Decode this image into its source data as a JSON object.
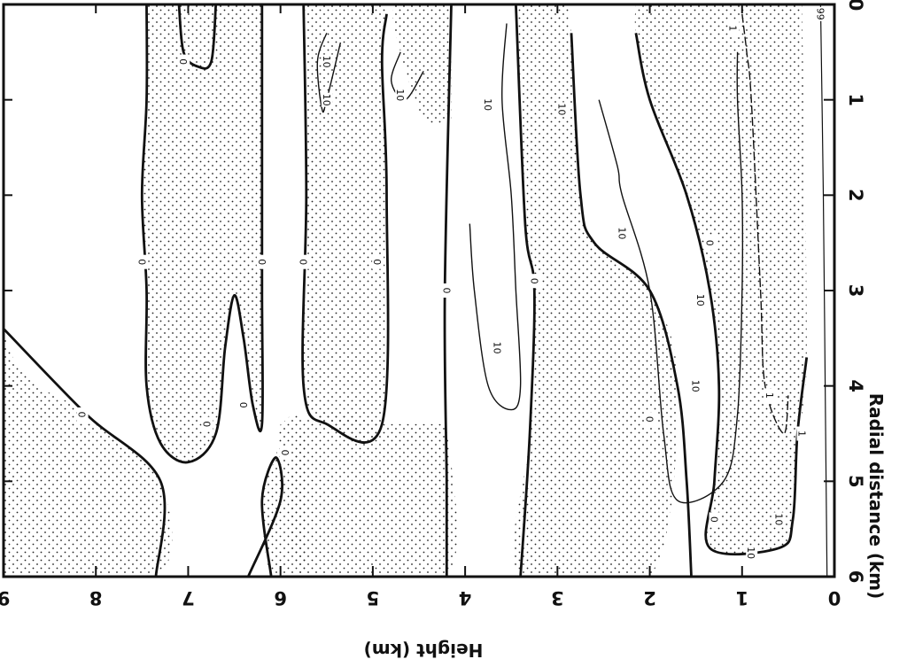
{
  "chart_data": {
    "type": "contour",
    "orientation": "rotated 90 degrees clockwise",
    "xlabel": "Radial distance (km)",
    "ylabel": "Height (km)",
    "xlim": [
      0,
      6
    ],
    "ylim": [
      0,
      9
    ],
    "x_ticks": [
      "0",
      "1",
      "2",
      "3",
      "4",
      "5",
      "6"
    ],
    "y_ticks": [
      "0",
      "1",
      "2",
      "3",
      "4",
      "5",
      "6",
      "7",
      "8",
      "9"
    ],
    "shading": "stippled regions",
    "contours": [
      {
        "level": "0",
        "style": "heavy",
        "points": [
          [
            0,
            7.45
          ],
          [
            1,
            7.45
          ],
          [
            2,
            7.5
          ],
          [
            3,
            7.45
          ],
          [
            4,
            7.45
          ],
          [
            4.6,
            7.3
          ],
          [
            4.8,
            7.0
          ],
          [
            4.5,
            6.7
          ],
          [
            3.6,
            6.6
          ],
          [
            3.05,
            6.5
          ],
          [
            3.5,
            6.4
          ],
          [
            4.2,
            6.3
          ],
          [
            4.4,
            6.2
          ],
          [
            3,
            6.2
          ],
          [
            1,
            6.2
          ],
          [
            0,
            6.2
          ]
        ]
      },
      {
        "level": "0",
        "style": "heavy",
        "points": [
          [
            0,
            6.7
          ],
          [
            0.6,
            6.75
          ],
          [
            0.65,
            6.9
          ],
          [
            0.5,
            7.05
          ],
          [
            0,
            7.1
          ]
        ]
      },
      {
        "level": "0",
        "style": "heavy",
        "points": [
          [
            3.4,
            9.0
          ],
          [
            4.3,
            8.1
          ],
          [
            5.0,
            7.3
          ],
          [
            6.0,
            7.35
          ]
        ]
      },
      {
        "level": "0",
        "style": "heavy",
        "points": [
          [
            6.0,
            6.35
          ],
          [
            5.2,
            6.0
          ],
          [
            4.75,
            6.05
          ],
          [
            5.2,
            6.2
          ],
          [
            6.0,
            6.1
          ]
        ]
      },
      {
        "level": "0",
        "style": "heavy",
        "points": [
          [
            0,
            5.75
          ],
          [
            2,
            5.72
          ],
          [
            4,
            5.75
          ],
          [
            4.4,
            5.5
          ],
          [
            4.4,
            4.9
          ],
          [
            2,
            4.85
          ],
          [
            0.6,
            4.9
          ],
          [
            0.1,
            4.85
          ]
        ]
      },
      {
        "level": "0",
        "style": "heavy",
        "points": [
          [
            0,
            4.15
          ],
          [
            3,
            4.22
          ],
          [
            5,
            4.2
          ],
          [
            6,
            4.2
          ]
        ]
      },
      {
        "level": "0",
        "style": "heavy",
        "points": [
          [
            0,
            3.45
          ],
          [
            2.3,
            3.35
          ],
          [
            3,
            3.25
          ],
          [
            4.5,
            3.3
          ],
          [
            6,
            3.4
          ]
        ]
      },
      {
        "level": "0",
        "style": "heavy",
        "points": [
          [
            0.3,
            2.85
          ],
          [
            2,
            2.75
          ],
          [
            2.5,
            2.6
          ],
          [
            3,
            2.0
          ],
          [
            4,
            1.7
          ],
          [
            5,
            1.6
          ],
          [
            6,
            1.55
          ]
        ]
      },
      {
        "level": "0",
        "style": "heavy",
        "points": [
          [
            0.3,
            2.15
          ],
          [
            1,
            2.0
          ],
          [
            2,
            1.6
          ],
          [
            3,
            1.35
          ],
          [
            4,
            1.25
          ],
          [
            5,
            1.3
          ],
          [
            5.7,
            1.35
          ],
          [
            5.7,
            0.6
          ],
          [
            5.4,
            0.45
          ],
          [
            4.5,
            0.4
          ],
          [
            3.7,
            0.3
          ]
        ]
      },
      {
        "level": "10",
        "style": "thin",
        "points": [
          [
            2.3,
            3.95
          ],
          [
            3,
            3.9
          ],
          [
            4,
            3.75
          ],
          [
            4.25,
            3.5
          ],
          [
            4,
            3.4
          ],
          [
            3,
            3.45
          ],
          [
            2,
            3.5
          ],
          [
            1,
            3.6
          ],
          [
            0.2,
            3.55
          ]
        ]
      },
      {
        "level": "10",
        "style": "thin",
        "points": [
          [
            1.0,
            2.55
          ],
          [
            1.7,
            2.35
          ],
          [
            2,
            2.3
          ],
          [
            3,
            2.0
          ],
          [
            4.5,
            1.85
          ],
          [
            5.2,
            1.7
          ],
          [
            5.0,
            1.2
          ],
          [
            4.3,
            1.05
          ],
          [
            3,
            1.0
          ],
          [
            2,
            1.0
          ],
          [
            1,
            1.05
          ],
          [
            0.5,
            1.05
          ]
        ]
      },
      {
        "level": "1",
        "style": "thin",
        "points": [
          [
            0.1,
            1.0
          ],
          [
            0.5,
            0.95
          ],
          [
            1,
            0.9
          ],
          [
            3,
            0.8
          ],
          [
            4,
            0.75
          ],
          [
            4.5,
            0.55
          ],
          [
            4.1,
            0.5
          ]
        ]
      },
      {
        "level": "10",
        "style": "thin",
        "points": [
          [
            0.4,
            5.35
          ],
          [
            1.0,
            5.5
          ],
          [
            1.1,
            5.55
          ],
          [
            0.6,
            5.6
          ],
          [
            0.3,
            5.5
          ]
        ]
      },
      {
        "level": "10",
        "style": "thin",
        "points": [
          [
            0.7,
            4.45
          ],
          [
            1.0,
            4.65
          ],
          [
            0.8,
            4.8
          ],
          [
            0.5,
            4.7
          ]
        ]
      }
    ],
    "contour_labels": [
      {
        "text": "0",
        "x": 2.7,
        "y": 7.5
      },
      {
        "text": "0",
        "x": 0.6,
        "y": 7.05
      },
      {
        "text": "0",
        "x": 4.4,
        "y": 6.8
      },
      {
        "text": "0",
        "x": 2.7,
        "y": 6.2
      },
      {
        "text": "0",
        "x": 4.2,
        "y": 6.4
      },
      {
        "text": "0",
        "x": 4.7,
        "y": 5.95
      },
      {
        "text": "0",
        "x": 4.3,
        "y": 8.15
      },
      {
        "text": "0",
        "x": 2.7,
        "y": 5.75
      },
      {
        "text": "0",
        "x": 2.7,
        "y": 4.95
      },
      {
        "text": "0",
        "x": 3.0,
        "y": 4.2
      },
      {
        "text": "0",
        "x": 2.9,
        "y": 3.25
      },
      {
        "text": "0",
        "x": 4.35,
        "y": 2.0
      },
      {
        "text": "0",
        "x": 2.5,
        "y": 1.35
      },
      {
        "text": "0",
        "x": 5.4,
        "y": 1.3
      },
      {
        "text": "10",
        "x": 1.0,
        "y": 5.5
      },
      {
        "text": "10",
        "x": 0.95,
        "y": 4.7
      },
      {
        "text": "10",
        "x": 0.6,
        "y": 5.5
      },
      {
        "text": "10",
        "x": 1.05,
        "y": 3.75
      },
      {
        "text": "10",
        "x": 3.6,
        "y": 3.65
      },
      {
        "text": "10",
        "x": 1.1,
        "y": 2.95
      },
      {
        "text": "10",
        "x": 2.4,
        "y": 2.3
      },
      {
        "text": "10",
        "x": 4.0,
        "y": 1.5
      },
      {
        "text": "10",
        "x": 3.1,
        "y": 1.45
      },
      {
        "text": "10",
        "x": 5.75,
        "y": 0.9
      },
      {
        "text": "10",
        "x": 5.4,
        "y": 0.6
      },
      {
        "text": "1",
        "x": 4.1,
        "y": 0.7
      },
      {
        "text": "1",
        "x": 4.5,
        "y": 0.35
      },
      {
        "text": "1",
        "x": 0.25,
        "y": 1.1
      },
      {
        "text": "99",
        "x": 0.1,
        "y": 0.15
      }
    ]
  }
}
